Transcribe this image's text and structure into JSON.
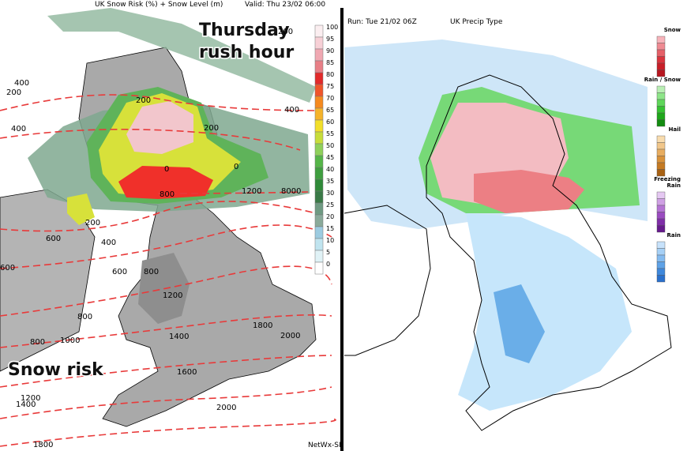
{
  "left_map": {
    "title": "UK Snow Risk (%) + Snow Level (m)",
    "valid": "Valid: Thu 23/02 06:00",
    "overlay_title": [
      "Thursday",
      "rush hour"
    ],
    "overlay_label": "Snow risk",
    "credit": "NetWx-SI",
    "legend": [
      100,
      95,
      90,
      85,
      80,
      75,
      70,
      65,
      60,
      55,
      50,
      45,
      40,
      35,
      30,
      25,
      20,
      15,
      10,
      5,
      0
    ],
    "contour_labels": [
      200,
      400,
      200,
      400,
      200,
      200,
      400,
      0,
      0,
      1200,
      8000,
      800,
      200,
      400,
      600,
      600,
      600,
      800,
      1200,
      800,
      1000,
      800,
      1400,
      1800,
      2000,
      1600,
      1200,
      1400,
      2000,
      1800
    ]
  },
  "right_map": {
    "run": "Run: Tue 21/02 06Z",
    "title": "UK Precip Type",
    "legend": [
      [
        "Snow"
      ],
      [
        "Rain / Snow"
      ],
      [
        "Hail"
      ],
      [
        "Freezing",
        "Rain"
      ],
      [
        "Rain"
      ]
    ]
  }
}
